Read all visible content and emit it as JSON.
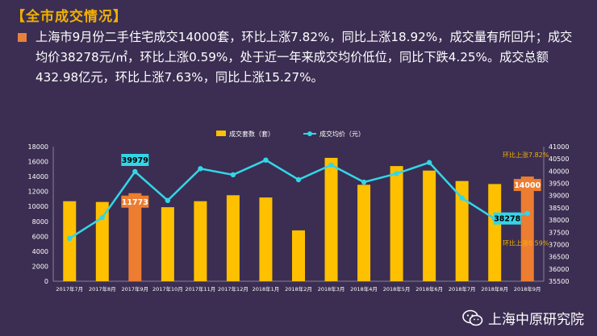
{
  "header": {
    "section_title": "【全市成交情况】",
    "summary": "上海市9月份二手住宅成交14000套，环比上涨7.82%，同比上涨18.92%，成交量有所回升；成交均价38278元/㎡，环比上涨0.59%，处于近一年来成交均价低位，同比下跌4.25%。成交总额432.98亿元，环比上涨7.63%，同比上涨15.27%。"
  },
  "footer": {
    "label": "上海中原研究院",
    "icon": "wechat-icon"
  },
  "colors": {
    "bar": "#ffc000",
    "bar_highlight": "#ed7d31",
    "line": "#33d6e8",
    "badge_bg": "#33d6e8",
    "text": "#ffffff",
    "accent": "#f2b100"
  },
  "chart_data": {
    "type": "bar+line",
    "categories": [
      "2017年7月",
      "2017年8月",
      "2017年9月",
      "2017年10月",
      "2017年11月",
      "2017年12月",
      "2018年1月",
      "2018年2月",
      "2018年3月",
      "2018年4月",
      "2018年5月",
      "2018年6月",
      "2018年7月",
      "2018年8月",
      "2018年9月"
    ],
    "series": [
      {
        "name": "成交套数（套）",
        "type": "bar",
        "axis": "left",
        "values": [
          10700,
          10600,
          11773,
          9900,
          10700,
          11500,
          11200,
          6800,
          16500,
          12900,
          15400,
          14800,
          13400,
          13000,
          14000
        ]
      },
      {
        "name": "成交均价（元）",
        "type": "line",
        "axis": "right",
        "values": [
          37250,
          38100,
          39979,
          38800,
          40100,
          39850,
          40450,
          39650,
          40250,
          39550,
          39900,
          40350,
          38900,
          38050,
          38278
        ]
      }
    ],
    "y_left": {
      "min": 0,
      "max": 18000,
      "step": 2000
    },
    "y_right": {
      "min": 35500,
      "max": 41000,
      "step": 500
    },
    "labels": [
      {
        "text": "39979",
        "series": "成交均价（元）",
        "index": 2,
        "style": "badge-line"
      },
      {
        "text": "11773",
        "series": "成交套数（套）",
        "index": 2,
        "style": "badge-bar"
      },
      {
        "text": "14000",
        "series": "成交套数（套）",
        "index": 14,
        "style": "badge-bar"
      },
      {
        "text": "38278",
        "series": "成交均价（元）",
        "index": 14,
        "style": "badge-line"
      }
    ],
    "annotations": [
      {
        "text": "环比上涨7.82%",
        "index": 14,
        "near": "bar-top"
      },
      {
        "text": "环比上涨0.59%",
        "index": 14,
        "near": "line-point"
      }
    ],
    "legend_position": "top",
    "grid": false
  }
}
